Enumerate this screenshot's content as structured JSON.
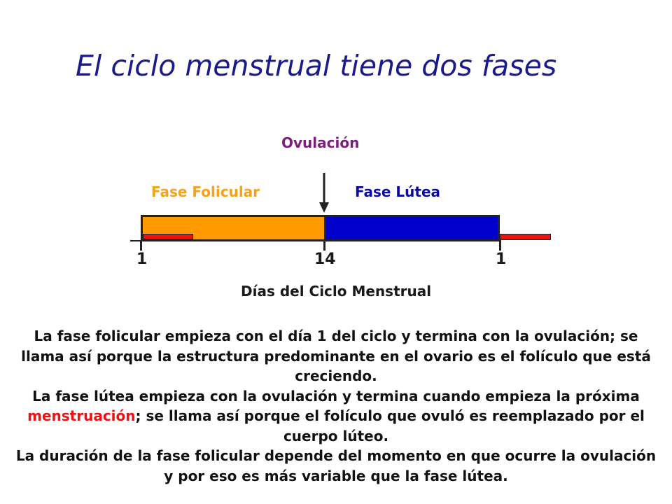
{
  "title": "El ciclo menstrual tiene dos fases",
  "diagram": {
    "ovulation_label": "Ovulación",
    "follicular_label": "Fase Folicular",
    "luteal_label": "Fase Lútea",
    "ticks": [
      "1",
      "14",
      "1"
    ],
    "axis_label": "Días del Ciclo Menstrual"
  },
  "colors": {
    "title": "#1a1a8c",
    "ovulation": "#7a1f7a",
    "follicular": "#ff9a00",
    "luteal": "#0000cc",
    "menstruation": "#ee1111"
  },
  "text": {
    "p1": "La fase folicular empieza con el día 1 del ciclo y termina con la ovulación; se llama así porque la estructura predominante en el ovario es el folículo que está creciendo.",
    "p2_before": "La fase lútea empieza con la ovulación y termina cuando empieza la próxima ",
    "p2_highlight": "menstruación",
    "p2_after": "; se llama así porque el folículo que ovuló es reemplazado por el cuerpo lúteo.",
    "p3": "La duración de la fase folicular depende del momento en que ocurre la ovulación y por eso es más variable que la fase lútea."
  }
}
